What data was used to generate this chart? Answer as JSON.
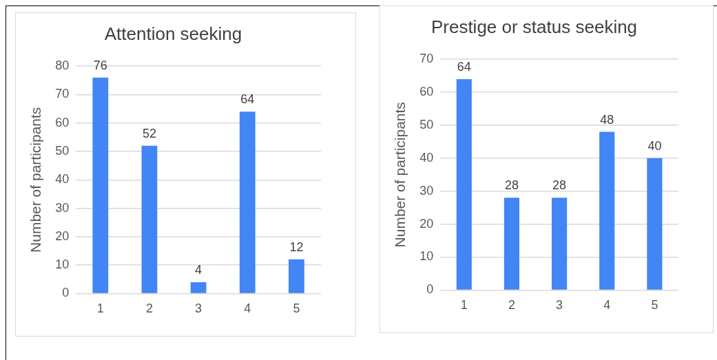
{
  "chart_data": [
    {
      "type": "bar",
      "title": "Attention seeking",
      "ylabel": "Number of participants",
      "categories": [
        "1",
        "2",
        "3",
        "4",
        "5"
      ],
      "values": [
        76,
        52,
        4,
        64,
        12
      ],
      "color": "#4285f4",
      "ylim": [
        0,
        80
      ],
      "yticks": [
        0,
        10,
        20,
        30,
        40,
        50,
        60,
        70,
        80
      ],
      "grid": "y",
      "data_labels": true
    },
    {
      "type": "bar",
      "title": "Prestige or status seeking",
      "ylabel": "Number of participants",
      "categories": [
        "1",
        "2",
        "3",
        "4",
        "5"
      ],
      "values": [
        64,
        28,
        28,
        48,
        40
      ],
      "color": "#4285f4",
      "ylim": [
        0,
        70
      ],
      "yticks": [
        0,
        10,
        20,
        30,
        40,
        50,
        60,
        70
      ],
      "grid": "y",
      "data_labels": true
    }
  ]
}
